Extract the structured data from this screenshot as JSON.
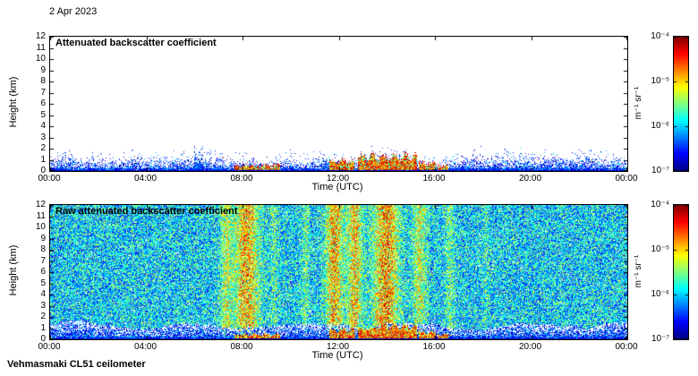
{
  "page": {
    "date_label": "2 Apr 2023",
    "footer_label": "Vehmasmaki CL51 ceilometer"
  },
  "axes": {
    "xlabel": "Time (UTC)",
    "ylabel": "Height (km)",
    "x_tick_labels": [
      "00:00",
      "04:00",
      "08:00",
      "12:00",
      "16:00",
      "20:00",
      "00:00"
    ],
    "y_tick_labels": [
      "12",
      "11",
      "10",
      "9",
      "8",
      "7",
      "6",
      "5",
      "4",
      "3",
      "2",
      "1",
      "0"
    ]
  },
  "colorbar": {
    "tick_labels": [
      "10⁻⁴",
      "10⁻⁵",
      "10⁻⁶",
      "10⁻⁷"
    ],
    "unit_label": "m⁻¹ sr⁻¹",
    "colormap": "jet",
    "scale": "log",
    "range": [
      "1e-7",
      "1e-4"
    ]
  },
  "chart_data": [
    {
      "type": "heatmap",
      "title": "Attenuated backscatter coefficient",
      "xlabel": "Time (UTC)",
      "ylabel": "Height (km)",
      "xlim_hours": [
        0,
        24
      ],
      "ylim_km": [
        0,
        12
      ],
      "x_tick_hours": [
        0,
        4,
        8,
        12,
        16,
        20,
        24
      ],
      "y_tick_km": [
        0,
        1,
        2,
        3,
        4,
        5,
        6,
        7,
        8,
        9,
        10,
        11,
        12
      ],
      "value_range": [
        "1e-7",
        "1e-4"
      ],
      "units": "m⁻¹ sr⁻¹",
      "features": {
        "description": "Clear sky (white) above ~2 km. Boundary-layer aerosol speckle below ~1.5 km all day. Strong low cloud/fog layer ~07:40-09:30 below 0.6 km; broken cumulus ~11:40-16:30 up to ~1.6 km; narrow plume near 06:10 reaching ~2.4 km.",
        "aerosol_layer_top_km": 1.5,
        "clouds_h": [
          [
            7.65,
            9.55,
            0.1,
            0.6
          ],
          [
            11.6,
            12.65,
            0.15,
            1.15
          ],
          [
            12.8,
            15.25,
            0.15,
            1.65
          ],
          [
            15.3,
            16.0,
            0.1,
            0.85
          ],
          [
            16.1,
            16.55,
            0.1,
            0.6
          ]
        ],
        "plume_h": [
          6.15,
          2.4
        ]
      }
    },
    {
      "type": "heatmap",
      "title": "Raw attenuated backscatter coefficient",
      "xlabel": "Time (UTC)",
      "ylabel": "Height (km)",
      "xlim_hours": [
        0,
        24
      ],
      "ylim_km": [
        0,
        12
      ],
      "x_tick_hours": [
        0,
        4,
        8,
        12,
        16,
        20,
        24
      ],
      "y_tick_km": [
        0,
        1,
        2,
        3,
        4,
        5,
        6,
        7,
        8,
        9,
        10,
        11,
        12
      ],
      "value_range": [
        "1e-7",
        "1e-4"
      ],
      "units": "m⁻¹ sr⁻¹",
      "features": {
        "description": "Full-height blue/green instrument noise; brighter yellow-orange vertical daylight-noise columns near 07:20, 08:10, 11:45, 12:40, 14:00 and 15:20; white-speckled low-noise zone below ~1.4 km with dense blue near the surface; same cloud returns as upper panel.",
        "surface_zone_top_km": 1.4,
        "noise_columns_h": [
          [
            8.15,
            0.5,
            0.5
          ],
          [
            7.3,
            0.22,
            0.28
          ],
          [
            11.8,
            0.35,
            0.5
          ],
          [
            12.65,
            0.3,
            0.45
          ],
          [
            13.95,
            0.5,
            0.55
          ],
          [
            15.35,
            0.28,
            0.32
          ],
          [
            10.6,
            0.15,
            0.18
          ],
          [
            16.6,
            0.2,
            0.18
          ],
          [
            9.3,
            0.15,
            0.14
          ],
          [
            18.1,
            0.12,
            0.1
          ]
        ],
        "clouds_h": [
          [
            7.65,
            9.55,
            0.1,
            0.6
          ],
          [
            11.6,
            12.65,
            0.15,
            1.15
          ],
          [
            12.8,
            15.25,
            0.15,
            1.65
          ],
          [
            15.3,
            16.0,
            0.1,
            0.85
          ],
          [
            16.1,
            16.55,
            0.1,
            0.6
          ]
        ]
      }
    }
  ]
}
